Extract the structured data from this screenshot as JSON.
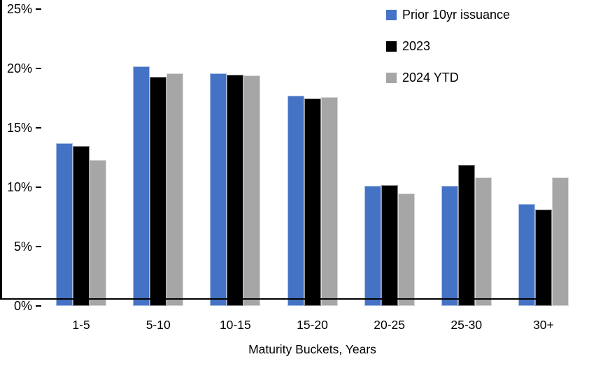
{
  "chart_data": {
    "type": "bar",
    "title": "",
    "categories": [
      "1-5",
      "5-10",
      "10-15",
      "15-20",
      "20-25",
      "25-30",
      "30+"
    ],
    "series": [
      {
        "name": "Prior 10yr issuance",
        "color": "#4472C4",
        "values": [
          13.7,
          20.2,
          19.6,
          17.7,
          10.1,
          10.1,
          8.6
        ]
      },
      {
        "name": "2023",
        "color": "#000000",
        "values": [
          13.5,
          19.3,
          19.5,
          17.5,
          10.2,
          11.9,
          8.1
        ]
      },
      {
        "name": "2024 YTD",
        "color": "#A6A6A6",
        "values": [
          12.3,
          19.6,
          19.4,
          17.6,
          9.5,
          10.8,
          10.8
        ]
      }
    ],
    "xlabel": "Maturity Buckets, Years",
    "ylabel": "",
    "ylim": [
      0,
      25
    ],
    "ytick_step": 5,
    "ytick_labels": [
      "0%",
      "5%",
      "10%",
      "15%",
      "20%",
      "25%"
    ],
    "legend_position": "top-right",
    "grid": false,
    "axis_color": "#000000",
    "background": "#FFFFFF"
  }
}
